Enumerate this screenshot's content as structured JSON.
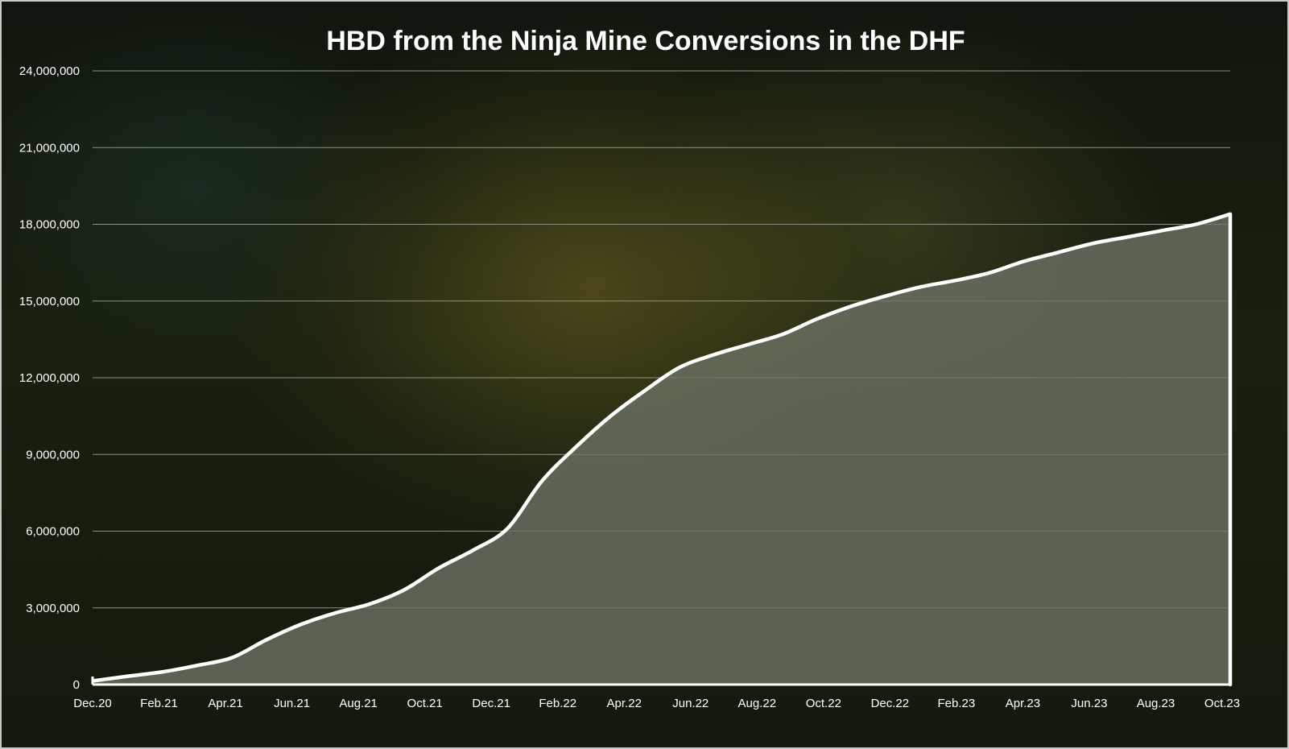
{
  "chart_data": {
    "type": "area",
    "title": "HBD from the Ninja Mine Conversions in the DHF",
    "xlabel": "",
    "ylabel": "",
    "ylim": [
      0,
      24000000
    ],
    "y_ticks": [
      0,
      3000000,
      6000000,
      9000000,
      12000000,
      15000000,
      18000000,
      21000000,
      24000000
    ],
    "y_tick_labels": [
      "0",
      "3,000,000",
      "6,000,000",
      "9,000,000",
      "12,000,000",
      "15,000,000",
      "18,000,000",
      "21,000,000",
      "24,000,000"
    ],
    "x_tick_labels": [
      "Dec.20",
      "Feb.21",
      "Apr.21",
      "Jun.21",
      "Aug.21",
      "Oct.21",
      "Dec.21",
      "Feb.22",
      "Apr.22",
      "Jun.22",
      "Aug.22",
      "Oct.22",
      "Dec.22",
      "Feb.23",
      "Apr.23",
      "Jun.23",
      "Aug.23",
      "Oct.23"
    ],
    "grid": true,
    "legend": "none",
    "colors": {
      "line": "#ffffff",
      "fill": "#6d7566",
      "grid": "#8c9186",
      "text": "#ffffff"
    },
    "x": [
      "Dec.20",
      "Jan.21",
      "Feb.21",
      "Mar.21",
      "Apr.21",
      "May.21",
      "Jun.21",
      "Jul.21",
      "Aug.21",
      "Sep.21",
      "Oct.21",
      "Nov.21",
      "Dec.21",
      "Jan.22",
      "Feb.22",
      "Mar.22",
      "Apr.22",
      "May.22",
      "Jun.22",
      "Jul.22",
      "Aug.22",
      "Sep.22",
      "Oct.22",
      "Nov.22",
      "Dec.22",
      "Jan.23",
      "Feb.23",
      "Mar.23",
      "Apr.23",
      "May.23",
      "Jun.23",
      "Jul.23",
      "Aug.23",
      "Oct.23"
    ],
    "series": [
      {
        "values": [
          150000,
          330000,
          500000,
          750000,
          1050000,
          1750000,
          2350000,
          2800000,
          3150000,
          3700000,
          4550000,
          5250000,
          6100000,
          7950000,
          9300000,
          10500000,
          11500000,
          12400000,
          12900000,
          13300000,
          13700000,
          14300000,
          14800000,
          15200000,
          15550000,
          15800000,
          16100000,
          16550000,
          16900000,
          17250000,
          17500000,
          17750000,
          18000000,
          18400000
        ]
      }
    ]
  }
}
